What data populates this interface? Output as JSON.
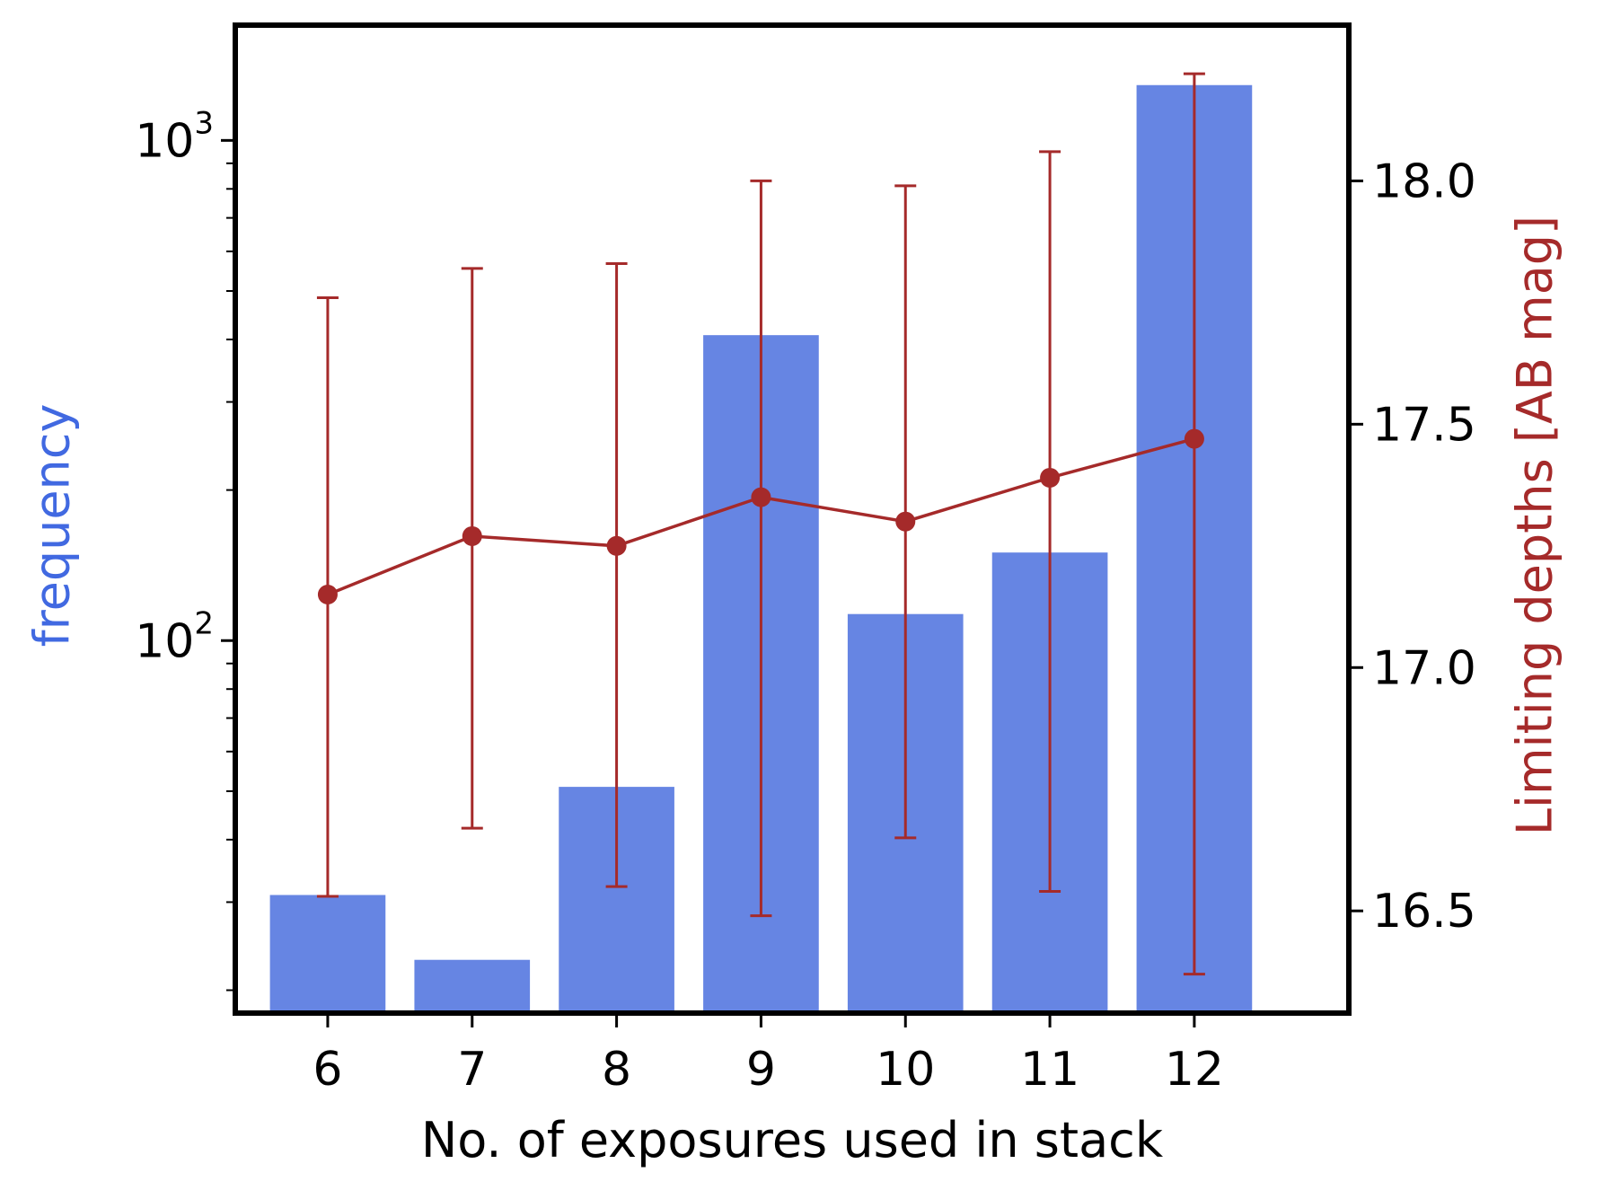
{
  "chart_data": {
    "type": "bar",
    "title": "",
    "x": [
      6,
      7,
      8,
      9,
      10,
      11,
      12
    ],
    "xlabel": "No. of exposures used in stack",
    "series": [
      {
        "type": "bar",
        "axis": "left",
        "color": "#6685e3",
        "values": [
          31,
          23,
          51,
          408,
          113,
          150,
          1290
        ]
      },
      {
        "type": "line-errorbar",
        "axis": "right",
        "color": "#a52a2a",
        "values": [
          17.15,
          17.27,
          17.25,
          17.35,
          17.3,
          17.39,
          17.47
        ],
        "err_low": [
          16.53,
          16.67,
          16.55,
          16.49,
          16.65,
          16.54,
          16.37
        ],
        "err_high": [
          17.76,
          17.82,
          17.83,
          18.0,
          17.99,
          18.06,
          18.22
        ]
      }
    ],
    "y_left": {
      "label": "frequency",
      "label_color": "#4169e1",
      "scale": "log",
      "range": [
        18,
        1700
      ],
      "ticks": [
        {
          "value": 100,
          "base": "10",
          "exp": "2"
        },
        {
          "value": 1000,
          "base": "10",
          "exp": "3"
        }
      ]
    },
    "y_right": {
      "label": "Limiting depths [AB mag]",
      "label_color": "#a52a2a",
      "scale": "linear",
      "range": [
        16.29,
        18.32
      ],
      "ticks": [
        "16.5",
        "17.0",
        "17.5",
        "18.0"
      ]
    },
    "x_ticks": [
      "6",
      "7",
      "8",
      "9",
      "10",
      "11",
      "12"
    ],
    "grid": false,
    "legend": null
  }
}
